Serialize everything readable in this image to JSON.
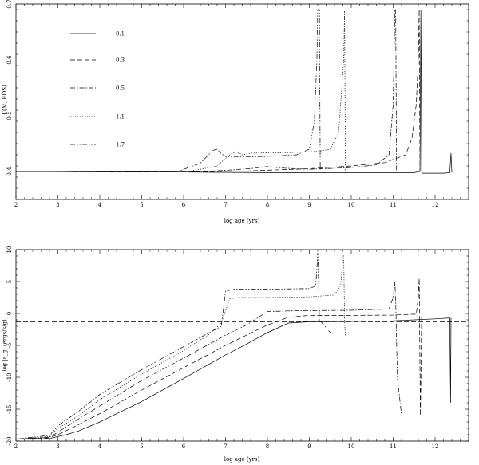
{
  "chart_data": [
    {
      "type": "line",
      "title": "",
      "xlabel": "log age (yrs)",
      "ylabel": "Γ(M, EOS)",
      "xlim": [
        2,
        12.8
      ],
      "ylim": [
        0.35,
        0.7
      ],
      "xticks": [
        "2",
        "3",
        "4",
        "5",
        "6",
        "7",
        "8",
        "9",
        "10",
        "11",
        "12"
      ],
      "yticks": [
        "0.4",
        "0.5",
        "0.6",
        "0.7"
      ],
      "legend": "top-left",
      "grid": false,
      "series": [
        {
          "name": "0.1",
          "dash": "solid",
          "x": [
            2,
            6,
            8,
            10,
            11.5,
            11.64,
            11.66,
            11.68,
            11.7,
            12.2,
            12.35,
            12.38,
            12.4
          ],
          "y": [
            0.4,
            0.399,
            0.398,
            0.398,
            0.398,
            0.4,
            0.69,
            0.4,
            0.397,
            0.397,
            0.398,
            0.433,
            0.398
          ]
        },
        {
          "name": "0.3",
          "dash": "dash",
          "x": [
            2,
            6,
            7.5,
            9,
            10,
            10.8,
            11.3,
            11.45,
            11.55,
            11.6,
            11.62,
            11.64
          ],
          "y": [
            0.4,
            0.399,
            0.401,
            0.405,
            0.41,
            0.416,
            0.43,
            0.46,
            0.52,
            0.6,
            0.69,
            0.4
          ]
        },
        {
          "name": "0.5",
          "dash": "dashdot",
          "x": [
            2,
            6,
            7,
            7.7,
            8,
            8.4,
            9,
            10,
            10.6,
            10.9,
            11.0,
            11.04,
            11.06,
            11.08
          ],
          "y": [
            0.4,
            0.399,
            0.402,
            0.406,
            0.409,
            0.406,
            0.404,
            0.407,
            0.412,
            0.43,
            0.52,
            0.69,
            0.69,
            0.4
          ]
        },
        {
          "name": "1.1",
          "dash": "dot",
          "x": [
            2,
            6.2,
            6.8,
            7.1,
            7.25,
            7.4,
            7.6,
            8.5,
            9.2,
            9.5,
            9.7,
            9.82,
            9.84,
            9.86
          ],
          "y": [
            0.4,
            0.401,
            0.41,
            0.43,
            0.436,
            0.43,
            0.433,
            0.434,
            0.436,
            0.44,
            0.47,
            0.6,
            0.69,
            0.4
          ]
        },
        {
          "name": "1.7",
          "dash": "dashdotdot",
          "x": [
            2,
            5.9,
            6.4,
            6.7,
            6.8,
            6.9,
            7.0,
            7.2,
            8.0,
            8.7,
            9.0,
            9.12,
            9.18,
            9.2,
            9.22,
            9.24,
            9.26
          ],
          "y": [
            0.4,
            0.401,
            0.415,
            0.438,
            0.44,
            0.432,
            0.427,
            0.426,
            0.427,
            0.43,
            0.44,
            0.49,
            0.6,
            0.69,
            0.69,
            0.69,
            0.4
          ]
        }
      ]
    },
    {
      "type": "line",
      "title": "",
      "xlabel": "log age (yrs)",
      "ylabel": "log |ε_g| (ergs/s/g)",
      "xlim": [
        2,
        12.8
      ],
      "ylim": [
        -20,
        10
      ],
      "xticks": [
        "2",
        "3",
        "4",
        "5",
        "6",
        "7",
        "8",
        "9",
        "10",
        "11",
        "12"
      ],
      "yticks": [
        "-20",
        "-15",
        "-10",
        "-5",
        "0",
        "5",
        "10"
      ],
      "grid": false,
      "hline": {
        "y": -1.3,
        "dash": "dash"
      },
      "series": [
        {
          "name": "0.1",
          "dash": "solid",
          "x": [
            2,
            2.8,
            3.2,
            3.5,
            4,
            5,
            6,
            7,
            7.5,
            8,
            8.5,
            9,
            10,
            11,
            12,
            12.35,
            12.37,
            12.38
          ],
          "y": [
            -19.7,
            -19.6,
            -19,
            -18.4,
            -17,
            -13.8,
            -10.2,
            -6.5,
            -4.8,
            -3,
            -1.5,
            -1.3,
            -1.25,
            -1.15,
            -0.85,
            -0.7,
            -14,
            -0.7
          ]
        },
        {
          "name": "0.3",
          "dash": "dash",
          "x": [
            2,
            2.8,
            3,
            3.5,
            4,
            5,
            6,
            7,
            8,
            8.5,
            9,
            10,
            11,
            11.55,
            11.6,
            11.62,
            11.65,
            11.68
          ],
          "y": [
            -19.7,
            -19.5,
            -19,
            -17.4,
            -15.7,
            -12,
            -8.5,
            -5,
            -1.8,
            -0.6,
            -0.3,
            -0.3,
            -0.25,
            -0.1,
            2.5,
            5.5,
            -16,
            0
          ]
        },
        {
          "name": "0.5",
          "dash": "dashdot",
          "x": [
            2,
            2.8,
            3,
            3.5,
            4,
            5,
            6,
            7,
            7.5,
            8,
            8.5,
            9,
            10,
            10.9,
            11.0,
            11.04,
            11.06,
            11.1,
            11.2
          ],
          "y": [
            -19.7,
            -19.4,
            -18.6,
            -16.5,
            -14.5,
            -10.5,
            -7,
            -3.4,
            -1.8,
            0.3,
            0.4,
            0.45,
            0.5,
            0.7,
            2.5,
            5,
            2,
            -10,
            -16
          ]
        },
        {
          "name": "1.1",
          "dash": "dot",
          "x": [
            2,
            2.8,
            3,
            3.5,
            4,
            5,
            6,
            6.6,
            6.9,
            7.1,
            7.3,
            8,
            9,
            9.6,
            9.75,
            9.8,
            9.82,
            9.84,
            9.86
          ],
          "y": [
            -19.7,
            -19.3,
            -18,
            -16,
            -13.5,
            -9.5,
            -5.8,
            -3.3,
            -1.5,
            2.3,
            2.5,
            2.5,
            2.6,
            2.9,
            4.5,
            9,
            9,
            -1,
            -3.5
          ]
        },
        {
          "name": "1.7",
          "dash": "dashdotdot",
          "x": [
            2,
            2.8,
            3,
            3.5,
            4,
            5,
            6,
            6.5,
            6.9,
            7.0,
            7.2,
            8,
            9,
            9.15,
            9.18,
            9.2,
            9.22,
            9.24,
            9.5
          ],
          "y": [
            -19.7,
            -19.1,
            -17.6,
            -15.3,
            -12.7,
            -8.8,
            -5.2,
            -3.4,
            -2,
            3.5,
            3.8,
            3.8,
            3.9,
            4.3,
            7,
            9.5,
            5,
            -1,
            -3
          ]
        }
      ]
    }
  ]
}
